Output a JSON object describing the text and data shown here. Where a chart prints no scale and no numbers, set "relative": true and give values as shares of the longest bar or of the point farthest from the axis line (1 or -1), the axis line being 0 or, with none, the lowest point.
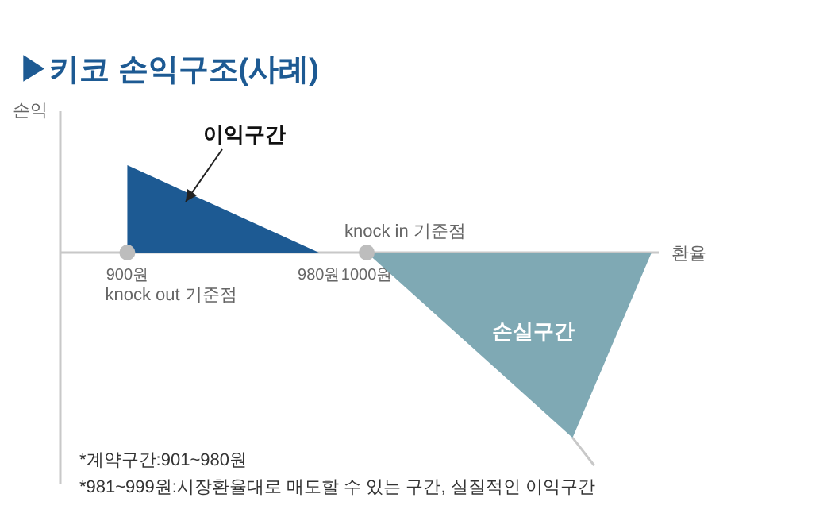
{
  "chart_data": {
    "type": "area",
    "title": "▶키코 손익구조(사례)",
    "xlabel": "환율",
    "ylabel": "손익",
    "relative": true,
    "xlim": [
      872,
      1122
    ],
    "xticks": [
      {
        "value": 900,
        "label": "900원"
      },
      {
        "value": 980,
        "label": "980원"
      },
      {
        "value": 1000,
        "label": "1000원"
      }
    ],
    "series": [
      {
        "color": "#1d5a93",
        "x": [
          900,
          980
        ],
        "values": [
          0.41,
          0
        ]
      },
      {
        "color": "#7fa9b4",
        "x": [
          1000,
          1086,
          1119
        ],
        "values": [
          0,
          -0.87,
          0
        ]
      },
      {
        "type": "line",
        "color": "#c8c8c8",
        "x": [
          1086,
          1095
        ],
        "values": [
          -0.87,
          -1
        ]
      },
      {
        "type": "scatter",
        "color": "#bdbdbd",
        "marker": "circle",
        "x": [
          900,
          1000
        ],
        "values": [
          0,
          0
        ]
      }
    ],
    "annotations": [
      "이익구간",
      {
        "text": "knock out 기준점",
        "x": 900,
        "y": 0
      },
      {
        "text": "knock in 기준점",
        "x": 1000,
        "y": 0
      },
      "손실구간",
      "*계약구간:901~980원",
      "*981~999원:시장환율대로 매도할 수 있는 구간, 실질적인 이익구간"
    ]
  }
}
